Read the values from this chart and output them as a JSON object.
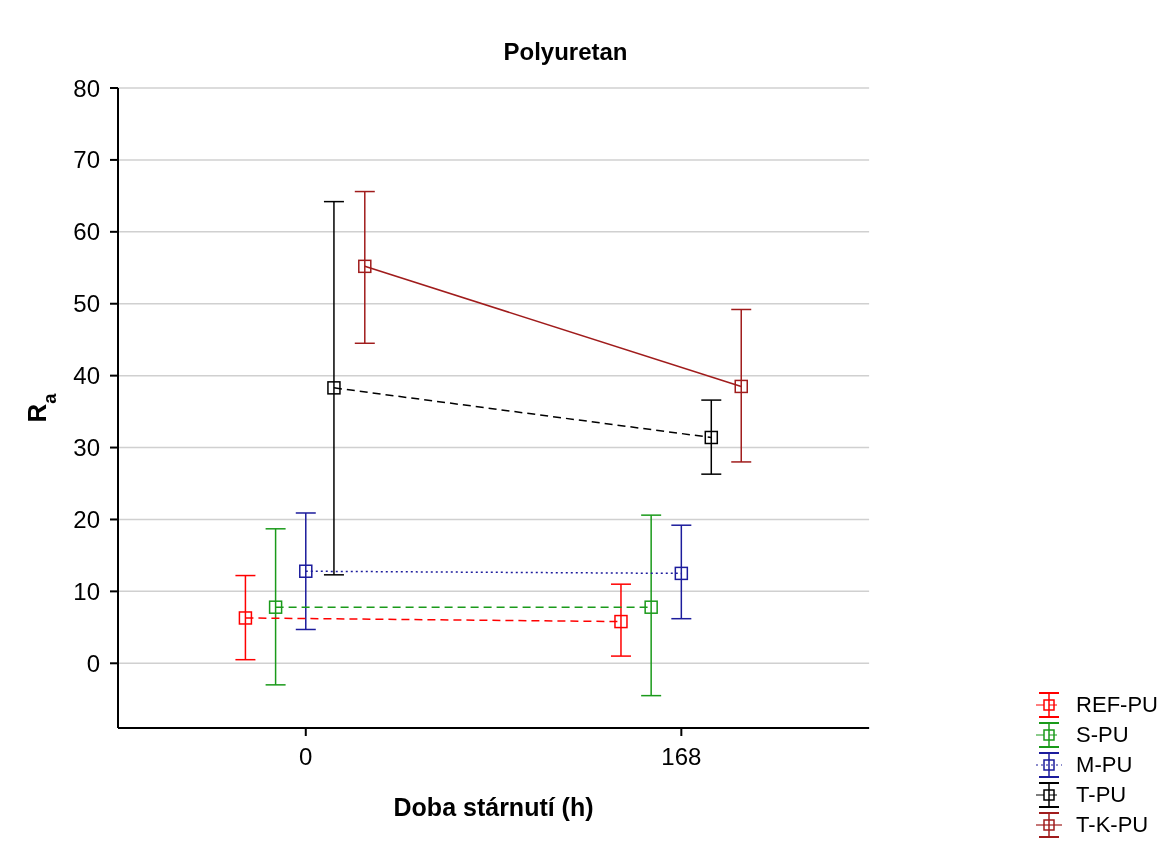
{
  "chart_data": {
    "type": "line",
    "title": "Polyuretan",
    "xlabel": "Doba stárnutí (h)",
    "ylabel": "R$_{a}$",
    "xlim": [
      -84,
      252
    ],
    "xticks": [
      0,
      168
    ],
    "ylim": [
      -9,
      80
    ],
    "yticks": [
      0,
      10,
      20,
      30,
      40,
      50,
      60,
      70,
      80
    ],
    "grid": "y",
    "legend": "bottom right",
    "marker": "square",
    "series": [
      {
        "name": "REF-PU",
        "color": "#ff0000",
        "line_style": "dashed",
        "x": [
          -27,
          141
        ],
        "values": [
          6.3,
          5.8
        ],
        "errors": [
          [
            0.5,
            12.2
          ],
          [
            1,
            11
          ]
        ]
      },
      {
        "name": "S-PU",
        "color": "#1a9a1a",
        "line_style": "dashed",
        "x": [
          -13.5,
          154.5
        ],
        "values": [
          7.8,
          7.8
        ],
        "errors": [
          [
            -3,
            18.7
          ],
          [
            -4.5,
            20.6
          ]
        ]
      },
      {
        "name": "M-PU",
        "color": "#1c1c9c",
        "line_style": "dotted",
        "x": [
          0,
          168
        ],
        "values": [
          12.8,
          12.5
        ],
        "errors": [
          [
            4.7,
            20.9
          ],
          [
            6.2,
            19.2
          ]
        ]
      },
      {
        "name": "T-PU",
        "color": "#000000",
        "line_style": "dashed",
        "x": [
          12.6,
          181.4
        ],
        "values": [
          38.3,
          31.4
        ],
        "errors": [
          [
            12.3,
            64.2
          ],
          [
            26.3,
            36.6
          ]
        ]
      },
      {
        "name": "T-K-PU",
        "color": "#a01c1c",
        "line_style": "solid",
        "x": [
          26.4,
          194.8
        ],
        "values": [
          55.2,
          38.5
        ],
        "errors": [
          [
            44.5,
            65.6
          ],
          [
            28,
            49.2
          ]
        ]
      }
    ]
  }
}
